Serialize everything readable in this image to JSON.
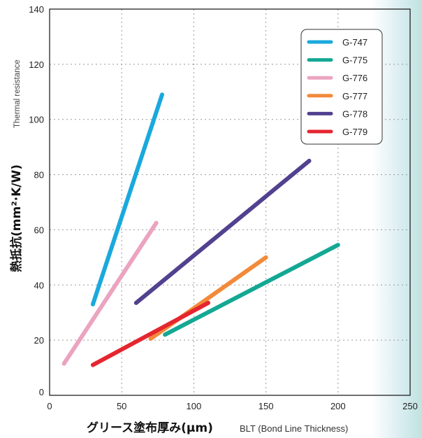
{
  "chart_data": {
    "type": "line",
    "xlim": [
      0,
      250
    ],
    "ylim": [
      0,
      140
    ],
    "x_ticks": [
      "0",
      "50",
      "100",
      "150",
      "200",
      "250"
    ],
    "y_ticks": [
      "0",
      "20",
      "40",
      "60",
      "80",
      "100",
      "120",
      "140"
    ],
    "ylabel_jp": "熱抵抗(mm²·K/W)",
    "ylabel_en": "Thermal resistance",
    "xlabel_jp": "グリース塗布厚み(μm)",
    "xlabel_en": "BLT (Bond Line Thickness)",
    "grid": true,
    "legend_position": "top-right",
    "series": [
      {
        "name": "G-747",
        "color": "#1aa9dd",
        "points": [
          [
            30,
            33
          ],
          [
            78,
            109
          ]
        ]
      },
      {
        "name": "G-775",
        "color": "#14a894",
        "points": [
          [
            80,
            22
          ],
          [
            200,
            54.5
          ]
        ]
      },
      {
        "name": "G-776",
        "color": "#eba4c0",
        "points": [
          [
            10,
            11.5
          ],
          [
            74,
            62.5
          ]
        ]
      },
      {
        "name": "G-777",
        "color": "#f28a3a",
        "points": [
          [
            70,
            20.5
          ],
          [
            150,
            50
          ]
        ]
      },
      {
        "name": "G-778",
        "color": "#52418f",
        "points": [
          [
            60,
            33.5
          ],
          [
            180,
            85
          ]
        ]
      },
      {
        "name": "G-779",
        "color": "#e5262f",
        "points": [
          [
            30,
            11
          ],
          [
            110,
            33.5
          ]
        ]
      }
    ]
  }
}
